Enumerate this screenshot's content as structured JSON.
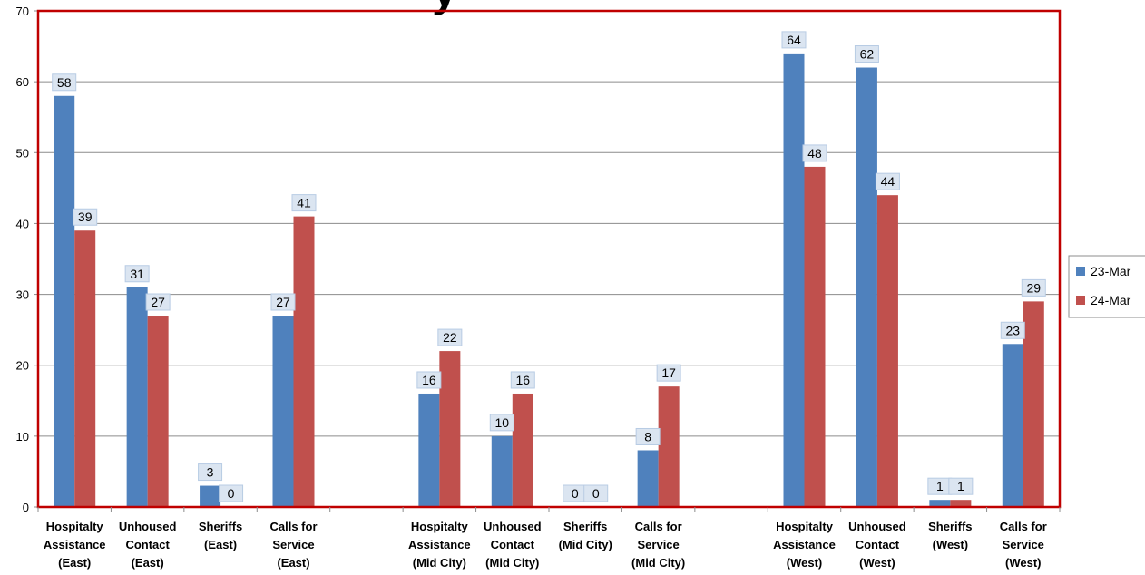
{
  "chart_data": {
    "type": "bar",
    "title_fragment": "y",
    "categories": [
      [
        "Hospitalty",
        "Assistance",
        "(East)"
      ],
      [
        "Unhoused",
        "Contact",
        "(East)"
      ],
      [
        "Sheriffs",
        "(East)"
      ],
      [
        "Calls for",
        "Service",
        "(East)"
      ],
      [],
      [
        "Hospitalty",
        "Assistance",
        "(Mid City)"
      ],
      [
        "Unhoused",
        "Contact",
        "(Mid City)"
      ],
      [
        "Sheriffs",
        "(Mid City)"
      ],
      [
        "Calls for",
        "Service",
        "(Mid City)"
      ],
      [],
      [
        "Hospitalty",
        "Assistance",
        "(West)"
      ],
      [
        "Unhoused",
        "Contact",
        "(West)"
      ],
      [
        "Sheriffs",
        "(West)"
      ],
      [
        "Calls for",
        "Service",
        "(West)"
      ]
    ],
    "series": [
      {
        "name": "23-Mar",
        "color": "#4F81BD",
        "values": [
          58,
          31,
          3,
          27,
          null,
          16,
          10,
          0,
          8,
          null,
          64,
          62,
          1,
          23
        ]
      },
      {
        "name": "24-Mar",
        "color": "#C0504D",
        "values": [
          39,
          27,
          0,
          41,
          null,
          22,
          16,
          0,
          17,
          null,
          48,
          44,
          1,
          29
        ]
      }
    ],
    "ylim": [
      0,
      70
    ],
    "yticks": [
      0,
      10,
      20,
      30,
      40,
      50,
      60,
      70
    ],
    "grid": true,
    "legend_position": "right",
    "plot_border_color": "#C00000"
  }
}
